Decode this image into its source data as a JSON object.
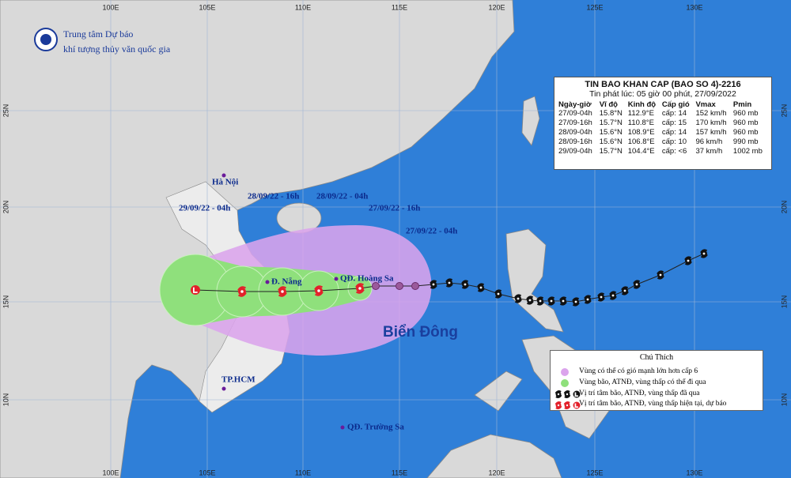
{
  "header": {
    "org_line1": "Trung tâm Dự báo",
    "org_line2": "khí tượng thủy văn quốc gia"
  },
  "map": {
    "lon_labels": [
      "100E",
      "105E",
      "110E",
      "115E",
      "120E",
      "125E",
      "130E"
    ],
    "lat_labels": [
      "25N",
      "20N",
      "15N",
      "10N"
    ],
    "places": [
      "Hà Nội",
      "Đ. Nẵng",
      "QĐ. Hoàng Sa",
      "TP.HCM",
      "QĐ. Trường Sa"
    ],
    "track_labels": [
      "29/09/22 - 04h",
      "28/09/22 - 16h",
      "28/09/22 - 04h",
      "27/09/22 - 16h",
      "27/09/22 - 04h"
    ],
    "sea": "Biển Đông"
  },
  "bulletin": {
    "title": "TIN BAO KHAN CAP  (BAO SO 4)-2216",
    "issued": "Tin phát lúc: 05 giờ 00 phút, 27/09/2022",
    "columns": [
      "Ngày-giờ",
      "Vĩ độ",
      "Kinh độ",
      "Cấp gió",
      "Vmax",
      "Pmin"
    ],
    "rows": [
      [
        "27/09-04h",
        "15.8°N",
        "112.9°E",
        "cấp: 14",
        "152 km/h",
        "960 mb"
      ],
      [
        "27/09-16h",
        "15.7°N",
        "110.8°E",
        "cấp: 15",
        "170 km/h",
        "960 mb"
      ],
      [
        "28/09-04h",
        "15.6°N",
        "108.9°E",
        "cấp: 14",
        "157 km/h",
        "960 mb"
      ],
      [
        "28/09-16h",
        "15.6°N",
        "106.8°E",
        "cấp: 10",
        "96 km/h",
        "990 mb"
      ],
      [
        "29/09-04h",
        "15.7°N",
        "104.4°E",
        "cấp: <6",
        "37 km/h",
        "1002 mb"
      ]
    ]
  },
  "legend": {
    "title": "Chú Thích",
    "items": [
      "Vùng có thể có gió mạnh lớn hơn cấp 6",
      "Vùng bão, ATNĐ, vùng thấp có thể đi qua",
      "Vị trí tâm bão, ATNĐ, vùng thấp đã qua",
      "Vị trí tâm bão, ATNĐ, vùng thấp hiện tại, dự báo"
    ]
  }
}
